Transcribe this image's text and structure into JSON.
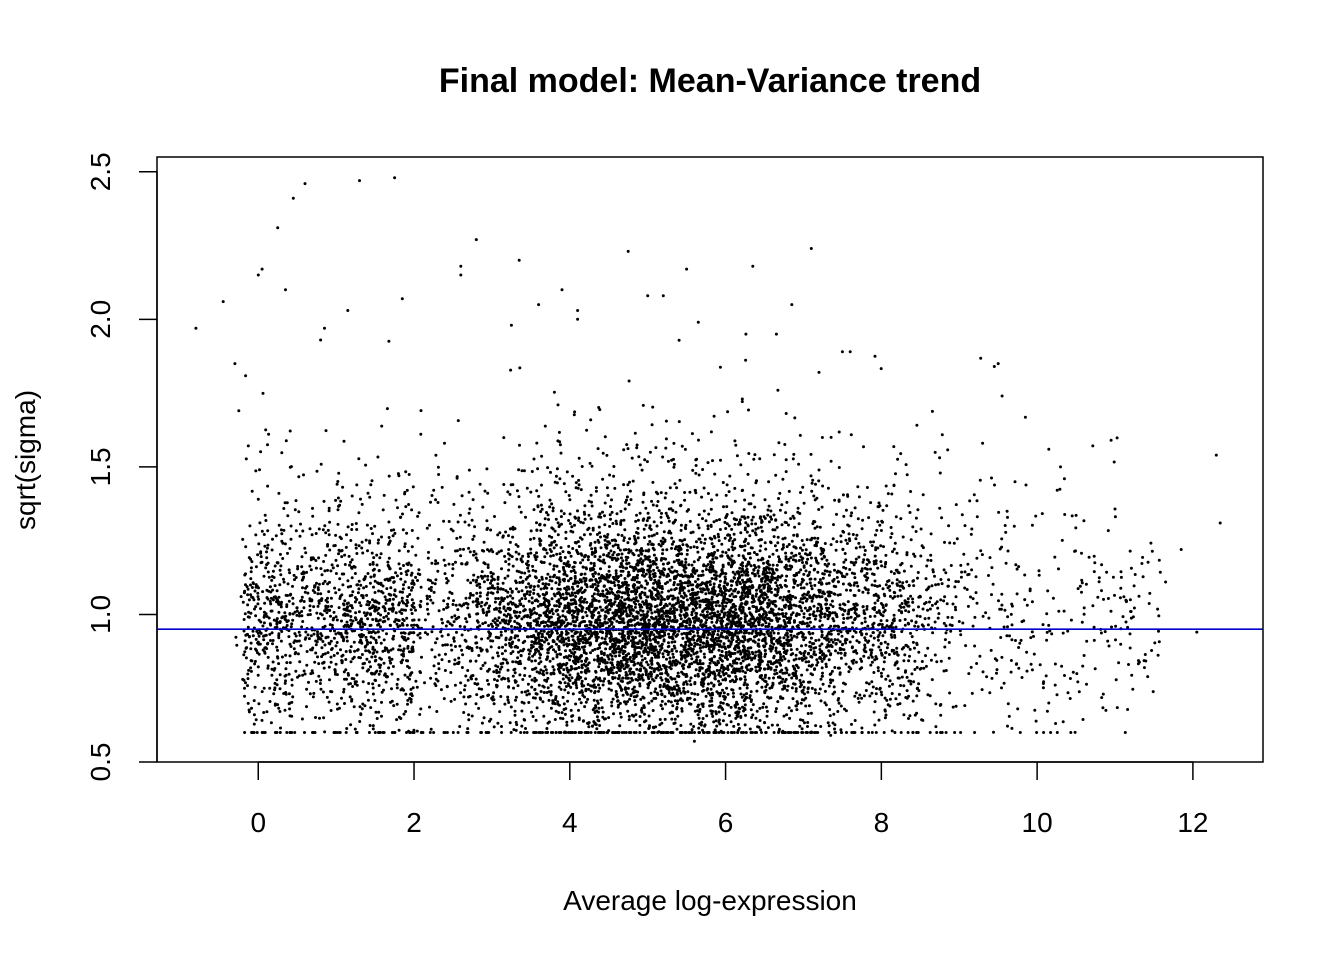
{
  "chart_data": {
    "type": "scatter",
    "title": "Final model: Mean-Variance trend",
    "xlabel": "Average log-expression",
    "ylabel": "sqrt(sigma)",
    "xlim": [
      -1.3,
      12.9
    ],
    "ylim": [
      0.5,
      2.55
    ],
    "xticks": [
      0,
      2,
      4,
      6,
      8,
      10,
      12
    ],
    "yticks": [
      0.5,
      1.0,
      1.5,
      2.0,
      2.5
    ],
    "ytick_labels": [
      "0.5",
      "1.0",
      "1.5",
      "2.0",
      "2.5"
    ],
    "grid": false,
    "point_color": "#000000",
    "reference_line": {
      "y": 0.95,
      "color": "#0000cd"
    },
    "outliers": [
      [
        -0.8,
        1.97
      ],
      [
        -0.45,
        2.06
      ],
      [
        -0.3,
        1.85
      ],
      [
        -0.25,
        1.69
      ],
      [
        0.0,
        2.15
      ],
      [
        0.05,
        2.17
      ],
      [
        0.25,
        2.31
      ],
      [
        0.35,
        2.1
      ],
      [
        0.45,
        2.41
      ],
      [
        0.6,
        2.46
      ],
      [
        0.8,
        1.93
      ],
      [
        0.85,
        1.97
      ],
      [
        1.15,
        2.03
      ],
      [
        1.3,
        2.47
      ],
      [
        1.75,
        2.48
      ],
      [
        1.85,
        2.07
      ],
      [
        2.6,
        2.18
      ],
      [
        2.6,
        2.15
      ],
      [
        2.8,
        2.27
      ],
      [
        3.25,
        1.98
      ],
      [
        3.35,
        2.2
      ],
      [
        3.6,
        2.05
      ],
      [
        3.9,
        2.1
      ],
      [
        4.1,
        2.03
      ],
      [
        4.1,
        2.0
      ],
      [
        4.75,
        2.23
      ],
      [
        5.0,
        2.08
      ],
      [
        5.2,
        2.08
      ],
      [
        5.5,
        2.17
      ],
      [
        5.65,
        1.99
      ],
      [
        6.35,
        2.18
      ],
      [
        6.85,
        2.05
      ],
      [
        7.1,
        2.24
      ],
      [
        7.2,
        1.82
      ],
      [
        7.5,
        1.89
      ],
      [
        7.6,
        1.89
      ],
      [
        9.45,
        1.84
      ],
      [
        9.5,
        1.85
      ],
      [
        9.55,
        1.74
      ],
      [
        9.3,
        1.58
      ],
      [
        10.15,
        1.56
      ],
      [
        10.3,
        1.5
      ],
      [
        10.35,
        1.46
      ],
      [
        10.95,
        1.59
      ],
      [
        12.3,
        1.54
      ],
      [
        12.35,
        1.31
      ],
      [
        10.85,
        0.73
      ],
      [
        11.2,
        1.01
      ],
      [
        11.65,
        1.11
      ],
      [
        11.85,
        1.22
      ],
      [
        12.05,
        0.94
      ],
      [
        8.7,
        0.62
      ],
      [
        9.75,
        0.68
      ],
      [
        10.15,
        0.7
      ],
      [
        -0.05,
        0.66
      ],
      [
        1.6,
        0.6
      ],
      [
        5.6,
        0.57
      ],
      [
        7.35,
        0.59
      ]
    ]
  }
}
